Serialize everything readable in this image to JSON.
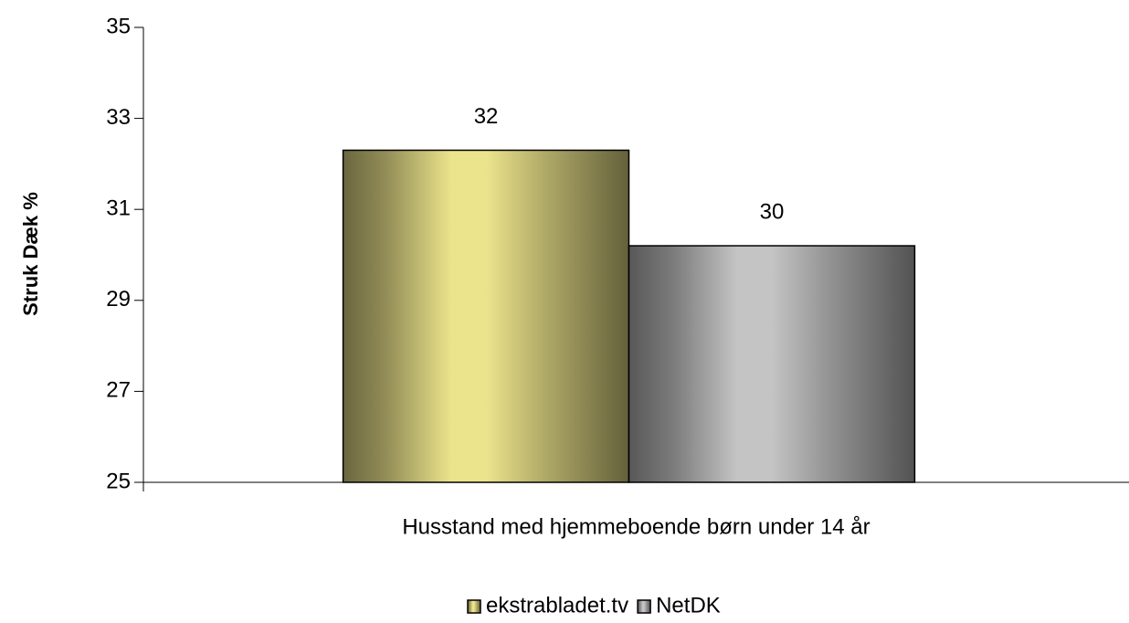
{
  "chart_data": {
    "type": "bar",
    "ylabel": "Struk Dæk %",
    "categories": [
      "Husstand med hjemmeboende børn under 14 år"
    ],
    "series": [
      {
        "name": "ekstrabladet.tv",
        "color": "#ece48c",
        "values": [
          32.3
        ],
        "value_labels": [
          "32"
        ]
      },
      {
        "name": "NetDK",
        "color": "#c4c4c4",
        "values": [
          30.2
        ],
        "value_labels": [
          "30"
        ]
      }
    ],
    "ylim": [
      25,
      35
    ],
    "yticks": [
      25,
      27,
      29,
      31,
      33,
      35
    ],
    "grid": false,
    "legend": "bottom"
  }
}
